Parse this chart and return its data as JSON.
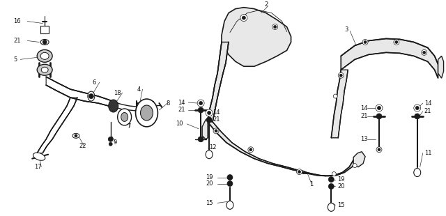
{
  "bg_color": "#ffffff",
  "line_color": "#1a1a1a",
  "fig_width": 6.4,
  "fig_height": 3.1,
  "dpi": 100
}
